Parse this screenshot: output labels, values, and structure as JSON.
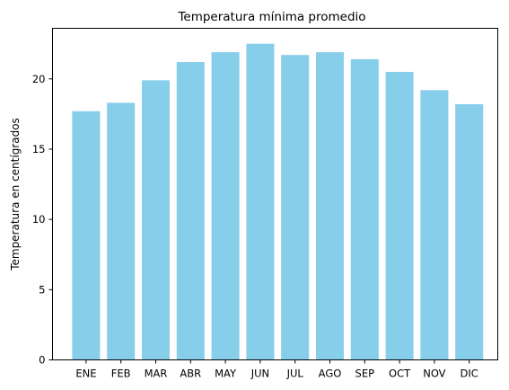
{
  "chart_data": {
    "type": "bar",
    "title": "Temperatura mínima promedio",
    "xlabel": "",
    "ylabel": "Temperatura en centígrados",
    "categories": [
      "ENE",
      "FEB",
      "MAR",
      "ABR",
      "MAY",
      "JUN",
      "JUL",
      "AGO",
      "SEP",
      "OCT",
      "NOV",
      "DIC"
    ],
    "values": [
      17.7,
      18.3,
      19.9,
      21.2,
      21.9,
      22.5,
      21.7,
      21.9,
      21.4,
      20.5,
      19.2,
      18.2
    ],
    "ylim": [
      0,
      23.6
    ],
    "yticks": [
      "0",
      "5",
      "10",
      "15",
      "20"
    ],
    "bar_color": "#87ceeb",
    "grid": false,
    "legend": "none"
  }
}
